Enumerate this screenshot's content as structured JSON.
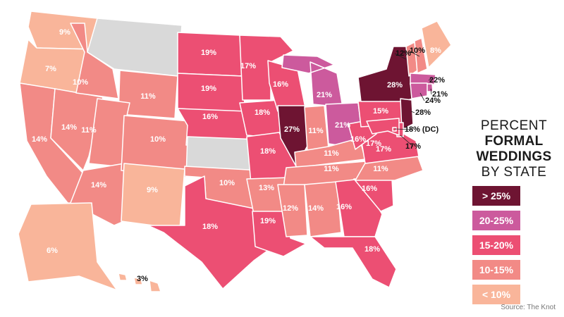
{
  "legend": {
    "title_line1": "PERCENT",
    "title_line2": "FORMAL WEDDINGS",
    "title_line3": "BY STATE",
    "bins": [
      {
        "label": "> 25%",
        "color": "#6e1432"
      },
      {
        "label": "20-25%",
        "color": "#cc5a9d"
      },
      {
        "label": "15-20%",
        "color": "#ec4f73"
      },
      {
        "label": "10-15%",
        "color": "#f28a86"
      },
      {
        "label": "< 10%",
        "color": "#f9b59a"
      }
    ]
  },
  "no_data_color": "#d9d9d9",
  "source": "Source: The Knot",
  "states": [
    {
      "id": "WA",
      "value": 9,
      "label": "9%"
    },
    {
      "id": "OR",
      "value": 7,
      "label": "7%"
    },
    {
      "id": "CA",
      "value": 14,
      "label": "14%"
    },
    {
      "id": "NV",
      "value": 14,
      "label": "14%"
    },
    {
      "id": "ID",
      "value": 10,
      "label": "10%"
    },
    {
      "id": "MT",
      "value": null,
      "label": ""
    },
    {
      "id": "WY",
      "value": 11,
      "label": "11%"
    },
    {
      "id": "UT",
      "value": 11,
      "label": "11%"
    },
    {
      "id": "AZ",
      "value": 14,
      "label": "14%"
    },
    {
      "id": "CO",
      "value": 10,
      "label": "10%"
    },
    {
      "id": "NM",
      "value": 9,
      "label": "9%"
    },
    {
      "id": "ND",
      "value": 19,
      "label": "19%"
    },
    {
      "id": "SD",
      "value": 19,
      "label": "19%"
    },
    {
      "id": "NE",
      "value": 16,
      "label": "16%"
    },
    {
      "id": "KS",
      "value": null,
      "label": ""
    },
    {
      "id": "OK",
      "value": 10,
      "label": "10%"
    },
    {
      "id": "TX",
      "value": 18,
      "label": "18%"
    },
    {
      "id": "MN",
      "value": 17,
      "label": "17%"
    },
    {
      "id": "IA",
      "value": 18,
      "label": "18%"
    },
    {
      "id": "MO",
      "value": 18,
      "label": "18%"
    },
    {
      "id": "AR",
      "value": 13,
      "label": "13%"
    },
    {
      "id": "LA",
      "value": 19,
      "label": "19%"
    },
    {
      "id": "WI",
      "value": 16,
      "label": "16%"
    },
    {
      "id": "IL",
      "value": 27,
      "label": "27%"
    },
    {
      "id": "MI",
      "value": 21,
      "label": "21%"
    },
    {
      "id": "IN",
      "value": 11,
      "label": "11%"
    },
    {
      "id": "OH",
      "value": 21,
      "label": "21%"
    },
    {
      "id": "KY",
      "value": 11,
      "label": "11%"
    },
    {
      "id": "TN",
      "value": 11,
      "label": "11%"
    },
    {
      "id": "MS",
      "value": 12,
      "label": "12%"
    },
    {
      "id": "AL",
      "value": 14,
      "label": "14%"
    },
    {
      "id": "GA",
      "value": 16,
      "label": "16%"
    },
    {
      "id": "FL",
      "value": 18,
      "label": "18%"
    },
    {
      "id": "SC",
      "value": 16,
      "label": "16%"
    },
    {
      "id": "NC",
      "value": 11,
      "label": "11%"
    },
    {
      "id": "VA",
      "value": 17,
      "label": "17%"
    },
    {
      "id": "WV",
      "value": 16,
      "label": "16%"
    },
    {
      "id": "PA",
      "value": 15,
      "label": "15%"
    },
    {
      "id": "NY",
      "value": 28,
      "label": "28%"
    },
    {
      "id": "VT",
      "value": 12,
      "label": "12%"
    },
    {
      "id": "NH",
      "value": 10,
      "label": "10%"
    },
    {
      "id": "ME",
      "value": 8,
      "label": "8%"
    },
    {
      "id": "MA",
      "value": 22,
      "label": "22%"
    },
    {
      "id": "RI",
      "value": 21,
      "label": "21%"
    },
    {
      "id": "CT",
      "value": 24,
      "label": "24%"
    },
    {
      "id": "NJ",
      "value": 28,
      "label": "28%"
    },
    {
      "id": "DE",
      "value": 17,
      "label": "17%"
    },
    {
      "id": "MD",
      "value": 17,
      "label": "17%"
    },
    {
      "id": "DC",
      "value": 18,
      "label": "18% (DC)"
    },
    {
      "id": "AK",
      "value": 6,
      "label": "6%"
    },
    {
      "id": "HI",
      "value": 3,
      "label": "3%"
    }
  ]
}
